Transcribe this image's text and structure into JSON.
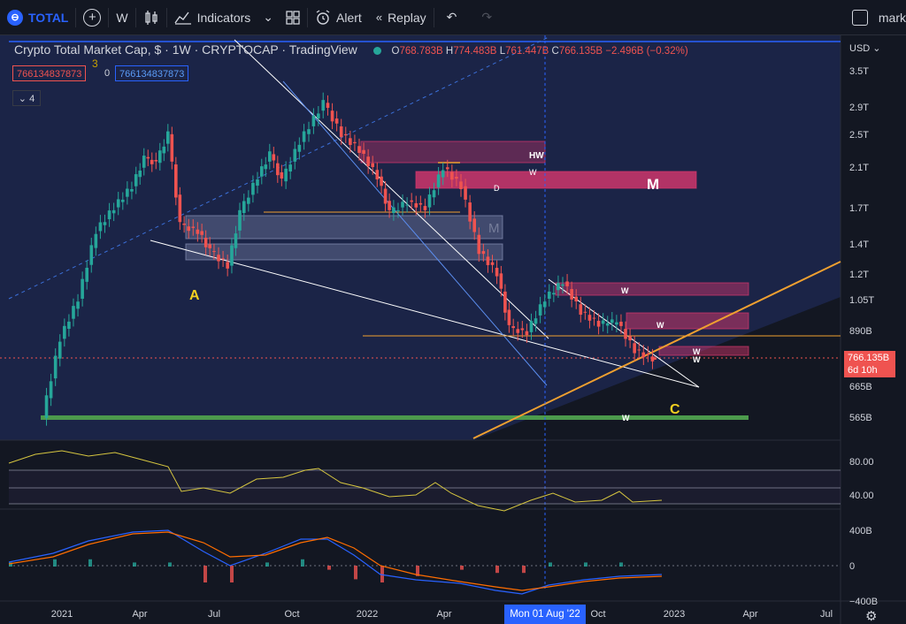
{
  "toolbar": {
    "symbol": "TOTAL",
    "interval": "W",
    "indicators_label": "Indicators",
    "alert_label": "Alert",
    "replay_label": "Replay",
    "right_label": "mark"
  },
  "legend": {
    "title": "Crypto Total Market Cap, $ · 1W · CRYPTOCAP · TradingView",
    "o_label": "O",
    "o_value": "768.783B",
    "h_label": "H",
    "h_value": "774.483B",
    "l_label": "L",
    "l_value": "761.447B",
    "c_label": "C",
    "c_value": "766.135B",
    "change": "−2.496B (−0.32%)",
    "value_left": "766134837873",
    "value_mid": "0",
    "value_right": "766134837873",
    "collapsed_count": "4"
  },
  "price_axis": {
    "currency": "USD",
    "ticks": [
      "3.5T",
      "2.9T",
      "2.5T",
      "2.1T",
      "1.7T",
      "1.4T",
      "1.2T",
      "1.05T",
      "890B",
      "665B",
      "565B"
    ],
    "current_price": "766.135B",
    "countdown": "6d 10h"
  },
  "rsi_axis": {
    "ticks": [
      "80.00",
      "40.00"
    ]
  },
  "macd_axis": {
    "ticks": [
      "400B",
      "0",
      "−400B"
    ]
  },
  "time_axis": {
    "ticks": [
      "2021",
      "Apr",
      "Jul",
      "Oct",
      "2022",
      "Apr",
      "Oct",
      "2023",
      "Apr",
      "Jul"
    ],
    "crosshair_label": "Mon 01 Aug '22"
  },
  "annotations": {
    "wave_a": "A",
    "wave_c": "C",
    "wave_3": "3",
    "hw": "HW",
    "w": "W",
    "big_m": "M",
    "faded_m": "M",
    "d": "D"
  },
  "colors": {
    "up": "#26a69a",
    "down": "#ef5350",
    "background": "#131722",
    "rect_blue": "#1e2a52",
    "supply_zone": "#d9376e",
    "support_orange": "#f0a030",
    "support_green": "#4c9a4c",
    "rsi_line": "#d6c640",
    "macd_line": "#2962ff",
    "signal_line": "#ff6d00"
  },
  "chart_data": {
    "type": "candlestick",
    "title": "Crypto Total Market Cap, $ · 1W · CRYPTOCAP · TradingView",
    "interval": "1W",
    "scale": "log",
    "y_unit": "USD",
    "x_range": [
      "2020-12-01",
      "2023-08-15"
    ],
    "y_range": [
      520000000000,
      3900000000000
    ],
    "last_candle": {
      "date": "2022-11-28",
      "open": 768783000000,
      "high": 774483000000,
      "low": 761447000000,
      "close": 766135000000
    },
    "close_series": [
      [
        "2020-12-14",
        560000000000
      ],
      [
        "2021-01-04",
        850000000000
      ],
      [
        "2021-01-25",
        1050000000000
      ],
      [
        "2021-02-15",
        1500000000000
      ],
      [
        "2021-03-08",
        1700000000000
      ],
      [
        "2021-03-29",
        1900000000000
      ],
      [
        "2021-04-12",
        2200000000000
      ],
      [
        "2021-04-26",
        2150000000000
      ],
      [
        "2021-05-10",
        2500000000000
      ],
      [
        "2021-05-24",
        1550000000000
      ],
      [
        "2021-06-14",
        1500000000000
      ],
      [
        "2021-06-28",
        1350000000000
      ],
      [
        "2021-07-19",
        1250000000000
      ],
      [
        "2021-08-02",
        1650000000000
      ],
      [
        "2021-08-23",
        2000000000000
      ],
      [
        "2021-09-06",
        2250000000000
      ],
      [
        "2021-09-20",
        1950000000000
      ],
      [
        "2021-10-11",
        2400000000000
      ],
      [
        "2021-11-08",
        2950000000000
      ],
      [
        "2021-11-29",
        2500000000000
      ],
      [
        "2021-12-20",
        2300000000000
      ],
      [
        "2022-01-10",
        2000000000000
      ],
      [
        "2022-01-24",
        1650000000000
      ],
      [
        "2022-02-14",
        1750000000000
      ],
      [
        "2022-03-07",
        1700000000000
      ],
      [
        "2022-03-28",
        2100000000000
      ],
      [
        "2022-04-18",
        1900000000000
      ],
      [
        "2022-05-09",
        1350000000000
      ],
      [
        "2022-05-30",
        1200000000000
      ],
      [
        "2022-06-13",
        900000000000
      ],
      [
        "2022-07-04",
        880000000000
      ],
      [
        "2022-07-25",
        1050000000000
      ],
      [
        "2022-08-15",
        1150000000000
      ],
      [
        "2022-09-05",
        980000000000
      ],
      [
        "2022-09-26",
        920000000000
      ],
      [
        "2022-10-17",
        930000000000
      ],
      [
        "2022-11-07",
        800000000000
      ],
      [
        "2022-11-28",
        766135000000
      ]
    ],
    "rsi": {
      "ticks": [
        80,
        40
      ],
      "bands": [
        70,
        50,
        30
      ]
    },
    "macd": {
      "ticks": [
        "400B",
        "0",
        "−400B"
      ]
    }
  }
}
